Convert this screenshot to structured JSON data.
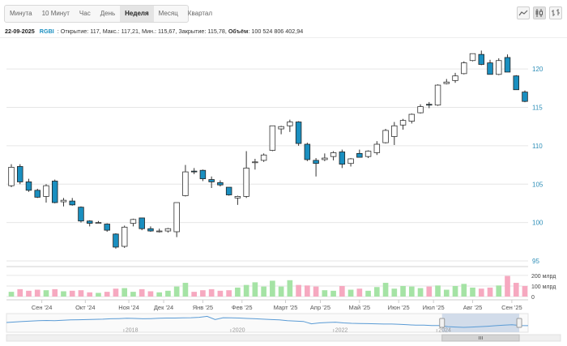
{
  "tabs": [
    "Минута",
    "10 Минут",
    "Час",
    "День",
    "Неделя",
    "Месяц",
    "Квартал"
  ],
  "active_tab": "Неделя",
  "tools": [
    {
      "name": "line-chart-icon",
      "active": false
    },
    {
      "name": "candlestick-chart-icon",
      "active": true
    },
    {
      "name": "ohlc-bars-icon",
      "active": false
    }
  ],
  "info": {
    "date": "22-09-2025",
    "ticker": "RGBI",
    "open_label": " : Открытие: 117,",
    "max_label": " Макс.: 117,21,",
    "min_label": " Мин.: 115,67,",
    "close_label": " Закрытие: 115,78,",
    "volume_label": "Объём",
    "volume_value": ": 100 524 806 402,94"
  },
  "colors": {
    "up_body": "#ffffff",
    "up_border": "#333333",
    "down_body": "#1a8fc0",
    "down_border": "#222222",
    "volume_up": "#a5e3a5",
    "volume_down": "#f6a9c0",
    "navigator_line": "#5a9bd5",
    "navigator_mask": "#c8d4e6",
    "grid": "#e6e6e6",
    "axis_label": "#2f8fb8"
  },
  "chart_data": {
    "type": "candlestick",
    "period": "weekly",
    "ylim": [
      95,
      123.5
    ],
    "yticks": [
      95,
      100,
      105,
      110,
      115,
      120
    ],
    "ytick_labels": [
      "95",
      "100",
      "105",
      "110",
      "115",
      "120"
    ],
    "volume_ticks": [
      "200 млрд",
      "100 млрд",
      "0"
    ],
    "volume_tick_values": [
      200,
      100,
      0
    ],
    "volume_max": 230,
    "xtick_labels": [
      "Сен '24",
      "Окт '24",
      "Ноя '24",
      "Дек '24",
      "Янв '25",
      "Фев '25",
      "Март '25",
      "Апр '25",
      "Май '25",
      "Июн '25",
      "Июл '25",
      "Авг '25",
      "Сен '25"
    ],
    "xtick_candle_index": [
      3.5,
      8.5,
      13.5,
      17.5,
      22,
      26.5,
      31.5,
      35.5,
      40,
      44.5,
      48.5,
      53,
      57.5
    ],
    "candles": [
      {
        "o": 104.8,
        "h": 107.6,
        "l": 104.6,
        "c": 107.2,
        "v": 45
      },
      {
        "o": 107.3,
        "h": 107.6,
        "l": 105.0,
        "c": 105.3,
        "v": 70
      },
      {
        "o": 105.3,
        "h": 105.7,
        "l": 104.0,
        "c": 104.2,
        "v": 55
      },
      {
        "o": 104.2,
        "h": 104.4,
        "l": 103.2,
        "c": 103.3,
        "v": 65
      },
      {
        "o": 103.4,
        "h": 105.0,
        "l": 102.6,
        "c": 104.8,
        "v": 60
      },
      {
        "o": 105.4,
        "h": 105.6,
        "l": 102.5,
        "c": 102.6,
        "v": 70
      },
      {
        "o": 102.7,
        "h": 103.2,
        "l": 102.1,
        "c": 102.9,
        "v": 50
      },
      {
        "o": 102.8,
        "h": 103.2,
        "l": 102.2,
        "c": 102.3,
        "v": 55
      },
      {
        "o": 102.0,
        "h": 102.1,
        "l": 100.0,
        "c": 100.2,
        "v": 60
      },
      {
        "o": 100.2,
        "h": 100.3,
        "l": 99.5,
        "c": 99.9,
        "v": 40
      },
      {
        "o": 100.0,
        "h": 100.2,
        "l": 99.9,
        "c": 100.0,
        "v": 35
      },
      {
        "o": 99.8,
        "h": 99.9,
        "l": 98.8,
        "c": 99.0,
        "v": 45
      },
      {
        "o": 98.5,
        "h": 98.6,
        "l": 96.6,
        "c": 96.8,
        "v": 75
      },
      {
        "o": 96.9,
        "h": 99.6,
        "l": 96.7,
        "c": 99.4,
        "v": 80
      },
      {
        "o": 99.9,
        "h": 100.5,
        "l": 99.5,
        "c": 100.4,
        "v": 45
      },
      {
        "o": 100.6,
        "h": 100.6,
        "l": 99.0,
        "c": 99.2,
        "v": 70
      },
      {
        "o": 99.2,
        "h": 99.5,
        "l": 98.8,
        "c": 98.9,
        "v": 50
      },
      {
        "o": 98.8,
        "h": 99.2,
        "l": 98.7,
        "c": 98.9,
        "v": 40
      },
      {
        "o": 98.9,
        "h": 99.3,
        "l": 98.7,
        "c": 99.2,
        "v": 55
      },
      {
        "o": 98.8,
        "h": 102.6,
        "l": 98.1,
        "c": 102.6,
        "v": 95
      },
      {
        "o": 103.5,
        "h": 107.5,
        "l": 103.4,
        "c": 106.6,
        "v": 130
      },
      {
        "o": 106.7,
        "h": 107.1,
        "l": 106.3,
        "c": 106.6,
        "v": 45
      },
      {
        "o": 106.8,
        "h": 106.9,
        "l": 105.4,
        "c": 105.7,
        "v": 60
      },
      {
        "o": 105.6,
        "h": 106.0,
        "l": 104.5,
        "c": 105.3,
        "v": 70
      },
      {
        "o": 105.2,
        "h": 105.5,
        "l": 104.7,
        "c": 104.9,
        "v": 55
      },
      {
        "o": 104.6,
        "h": 104.6,
        "l": 103.5,
        "c": 103.6,
        "v": 60
      },
      {
        "o": 103.2,
        "h": 103.5,
        "l": 102.3,
        "c": 103.4,
        "v": 85
      },
      {
        "o": 103.4,
        "h": 109.3,
        "l": 103.2,
        "c": 107.1,
        "v": 110
      },
      {
        "o": 107.8,
        "h": 108.3,
        "l": 106.9,
        "c": 107.9,
        "v": 135
      },
      {
        "o": 108.1,
        "h": 109.0,
        "l": 107.9,
        "c": 108.8,
        "v": 95
      },
      {
        "o": 109.4,
        "h": 112.6,
        "l": 109.3,
        "c": 112.6,
        "v": 150
      },
      {
        "o": 112.2,
        "h": 112.6,
        "l": 111.5,
        "c": 112.5,
        "v": 95
      },
      {
        "o": 112.6,
        "h": 113.4,
        "l": 111.8,
        "c": 113.1,
        "v": 155
      },
      {
        "o": 113.1,
        "h": 113.2,
        "l": 110.0,
        "c": 110.3,
        "v": 110
      },
      {
        "o": 110.2,
        "h": 110.4,
        "l": 108.0,
        "c": 108.2,
        "v": 105
      },
      {
        "o": 108.1,
        "h": 108.4,
        "l": 106.0,
        "c": 107.7,
        "v": 95
      },
      {
        "o": 108.2,
        "h": 109.0,
        "l": 108.0,
        "c": 108.4,
        "v": 60
      },
      {
        "o": 108.6,
        "h": 109.3,
        "l": 108.1,
        "c": 109.1,
        "v": 55
      },
      {
        "o": 109.2,
        "h": 109.5,
        "l": 107.1,
        "c": 107.6,
        "v": 100
      },
      {
        "o": 107.7,
        "h": 108.4,
        "l": 107.3,
        "c": 108.3,
        "v": 65
      },
      {
        "o": 109.0,
        "h": 109.5,
        "l": 108.5,
        "c": 108.5,
        "v": 75
      },
      {
        "o": 108.6,
        "h": 109.4,
        "l": 108.4,
        "c": 109.3,
        "v": 55
      },
      {
        "o": 109.1,
        "h": 110.6,
        "l": 108.8,
        "c": 110.2,
        "v": 90
      },
      {
        "o": 110.4,
        "h": 112.2,
        "l": 110.3,
        "c": 112.0,
        "v": 130
      },
      {
        "o": 111.2,
        "h": 113.1,
        "l": 110.1,
        "c": 112.6,
        "v": 75
      },
      {
        "o": 112.7,
        "h": 113.5,
        "l": 112.1,
        "c": 113.3,
        "v": 100
      },
      {
        "o": 113.2,
        "h": 114.2,
        "l": 112.9,
        "c": 114.1,
        "v": 95
      },
      {
        "o": 114.3,
        "h": 115.4,
        "l": 114.2,
        "c": 115.1,
        "v": 80
      },
      {
        "o": 115.4,
        "h": 115.7,
        "l": 114.9,
        "c": 115.3,
        "v": 95
      },
      {
        "o": 115.3,
        "h": 118.0,
        "l": 115.2,
        "c": 117.9,
        "v": 105
      },
      {
        "o": 118.1,
        "h": 118.7,
        "l": 118.0,
        "c": 118.3,
        "v": 65
      },
      {
        "o": 118.5,
        "h": 119.5,
        "l": 118.2,
        "c": 119.1,
        "v": 100
      },
      {
        "o": 119.4,
        "h": 121.0,
        "l": 119.3,
        "c": 120.8,
        "v": 120
      },
      {
        "o": 121.1,
        "h": 122.0,
        "l": 121.0,
        "c": 122.0,
        "v": 85
      },
      {
        "o": 121.9,
        "h": 122.4,
        "l": 120.5,
        "c": 120.6,
        "v": 75
      },
      {
        "o": 120.8,
        "h": 121.2,
        "l": 119.3,
        "c": 119.3,
        "v": 85
      },
      {
        "o": 119.3,
        "h": 121.4,
        "l": 119.2,
        "c": 121.1,
        "v": 105
      },
      {
        "o": 121.5,
        "h": 121.9,
        "l": 119.6,
        "c": 119.6,
        "v": 195
      },
      {
        "o": 119.1,
        "h": 119.2,
        "l": 117.3,
        "c": 117.3,
        "v": 130
      },
      {
        "o": 117.0,
        "h": 117.21,
        "l": 115.67,
        "c": 115.78,
        "v": 100
      }
    ],
    "navigator": {
      "year_labels": [
        "2018",
        "2020",
        "2022",
        "2024"
      ],
      "series": [
        0.52,
        0.55,
        0.58,
        0.6,
        0.62,
        0.63,
        0.62,
        0.64,
        0.66,
        0.67,
        0.68,
        0.69,
        0.7,
        0.72,
        0.73,
        0.75,
        0.74,
        0.72,
        0.73,
        0.75,
        0.76,
        0.76,
        0.77,
        0.78,
        0.8,
        0.85,
        0.68,
        0.78,
        0.77,
        0.76,
        0.74,
        0.72,
        0.7,
        0.68,
        0.66,
        0.62,
        0.6,
        0.58,
        0.45,
        0.5,
        0.52,
        0.54,
        0.5,
        0.48,
        0.47,
        0.46,
        0.45,
        0.44,
        0.44,
        0.42,
        0.4,
        0.38,
        0.38,
        0.36,
        0.36,
        0.3,
        0.28,
        0.26,
        0.28,
        0.3,
        0.32,
        0.35,
        0.38,
        0.4,
        0.36,
        0.35
      ],
      "window_start": 0.835,
      "window_end": 0.983
    }
  }
}
